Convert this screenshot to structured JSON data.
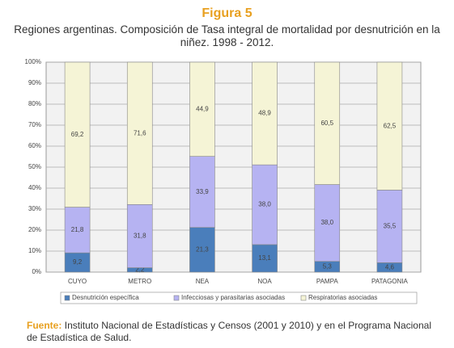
{
  "chart_data": {
    "type": "bar",
    "stacking": "percent",
    "title": "Figura 5",
    "subtitle": "Regiones argentinas. Composición de Tasa integral de mortalidad por desnutrición en la niñez. 1998 - 2012.",
    "categories": [
      "CUYO",
      "METRO",
      "NEA",
      "NOA",
      "PAMPA",
      "PATAGONIA"
    ],
    "series": [
      {
        "name": "Desnutrición específica",
        "color": "#4a7ebb",
        "values": [
          9.2,
          2.2,
          21.3,
          13.1,
          5.3,
          4.6
        ],
        "value_labels": [
          "9,2",
          "2,2",
          "21,3",
          "13,1",
          "5,3",
          "4,6"
        ]
      },
      {
        "name": "Infecciosas y parasitarias asociadas",
        "color": "#b6b3f2",
        "values": [
          21.8,
          31.8,
          33.9,
          38.0,
          38.0,
          35.5
        ],
        "value_labels": [
          "21,8",
          "31,8",
          "33,9",
          "38,0",
          "38,0",
          "35,5"
        ]
      },
      {
        "name": "Respiratorias asociadas",
        "color": "#f5f4d6",
        "values": [
          69.2,
          71.6,
          44.9,
          48.9,
          60.5,
          62.5
        ],
        "value_labels": [
          "69,2",
          "71,6",
          "44,9",
          "48,9",
          "60,5",
          "62,5"
        ]
      }
    ],
    "ylim": [
      0,
      100
    ],
    "yticks": [
      {
        "value": 0,
        "label": "0%"
      },
      {
        "value": 10,
        "label": "10%"
      },
      {
        "value": 20,
        "label": "20%"
      },
      {
        "value": 30,
        "label": "30%"
      },
      {
        "value": 40,
        "label": "40%"
      },
      {
        "value": 50,
        "label": "50%"
      },
      {
        "value": 60,
        "label": "60%"
      },
      {
        "value": 70,
        "label": "70%"
      },
      {
        "value": 80,
        "label": "80%"
      },
      {
        "value": 90,
        "label": "90%"
      },
      {
        "value": 100,
        "label": "100%"
      }
    ],
    "grid": true,
    "legend": "bottom"
  },
  "footer": {
    "label": "Fuente:",
    "text": "Instituto Nacional de Estadísticas y Censos (2001 y 2010) y en el Programa Nacional de Estadística de Salud."
  }
}
